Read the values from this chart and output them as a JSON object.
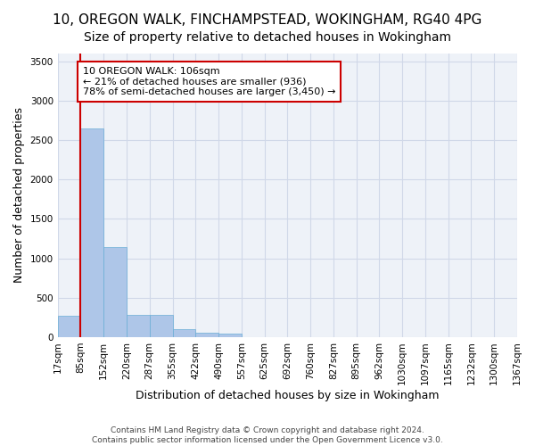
{
  "title": "10, OREGON WALK, FINCHAMPSTEAD, WOKINGHAM, RG40 4PG",
  "subtitle": "Size of property relative to detached houses in Wokingham",
  "xlabel": "Distribution of detached houses by size in Wokingham",
  "ylabel": "Number of detached properties",
  "bar_values": [
    270,
    2650,
    1140,
    285,
    285,
    95,
    60,
    40,
    0,
    0,
    0,
    0,
    0,
    0,
    0,
    0,
    0,
    0,
    0,
    0
  ],
  "bin_labels": [
    "17sqm",
    "85sqm",
    "152sqm",
    "220sqm",
    "287sqm",
    "355sqm",
    "422sqm",
    "490sqm",
    "557sqm",
    "625sqm",
    "692sqm",
    "760sqm",
    "827sqm",
    "895sqm",
    "962sqm",
    "1030sqm",
    "1097sqm",
    "1165sqm",
    "1232sqm",
    "1300sqm",
    "1367sqm"
  ],
  "bar_color": "#aec6e8",
  "bar_edge_color": "#6aaed6",
  "grid_color": "#d0d8e8",
  "background_color": "#eef2f8",
  "vline_color": "#cc0000",
  "vline_x": 1.0,
  "annotation_text": "10 OREGON WALK: 106sqm\n← 21% of detached houses are smaller (936)\n78% of semi-detached houses are larger (3,450) →",
  "annotation_box_color": "#ffffff",
  "annotation_box_edge_color": "#cc0000",
  "ylim": [
    0,
    3600
  ],
  "yticks": [
    0,
    500,
    1000,
    1500,
    2000,
    2500,
    3000,
    3500
  ],
  "footer_line1": "Contains HM Land Registry data © Crown copyright and database right 2024.",
  "footer_line2": "Contains public sector information licensed under the Open Government Licence v3.0.",
  "title_fontsize": 11,
  "ylabel_fontsize": 9,
  "xlabel_fontsize": 9,
  "tick_fontsize": 7.5,
  "annotation_fontsize": 8,
  "footer_fontsize": 6.5
}
